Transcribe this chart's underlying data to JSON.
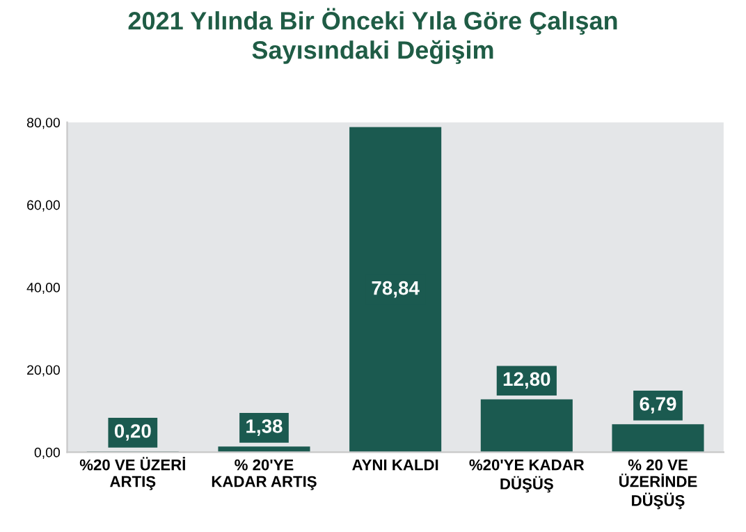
{
  "chart_data": {
    "type": "bar",
    "title": "2021 Yılında Bir Önceki Yıla Göre Çalışan\nSayısındaki Değişim",
    "categories": [
      "%20 VE ÜZERİ\nARTIŞ",
      "% 20'YE\nKADAR ARTIŞ",
      "AYNI KALDI",
      "%20'YE KADAR\nDÜŞÜŞ",
      "% 20 VE\nÜZERİNDE\nDÜŞÜŞ"
    ],
    "values": [
      0.2,
      1.38,
      78.84,
      12.8,
      6.79
    ],
    "value_labels": [
      "0,20",
      "1,38",
      "78,84",
      "12,80",
      "6,79"
    ],
    "color": "#1b5a50",
    "ylim": [
      0,
      80
    ],
    "yticks": [
      {
        "value": 0,
        "label": "0,00"
      },
      {
        "value": 20,
        "label": "20,00"
      },
      {
        "value": 40,
        "label": "40,00"
      },
      {
        "value": 60,
        "label": "60,00"
      },
      {
        "value": 80,
        "label": "80,00"
      }
    ],
    "grid": false
  }
}
